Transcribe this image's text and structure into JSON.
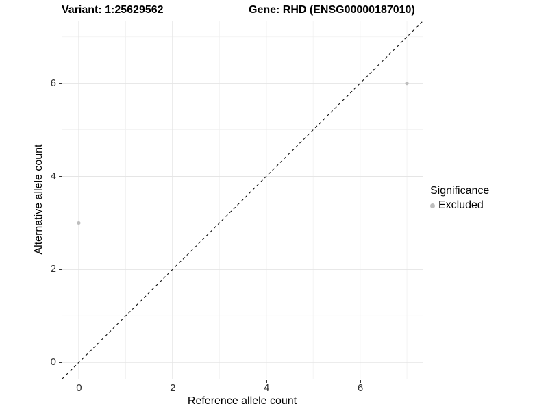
{
  "header": {
    "variant_title": "Variant: 1:25629562",
    "gene_title": "Gene: RHD (ENSG00000187010)"
  },
  "chart_data": {
    "type": "scatter",
    "title": "Variant: 1:25629562    Gene: RHD (ENSG00000187010)",
    "xlabel": "Reference allele count",
    "ylabel": "Alternative allele count",
    "xlim": [
      -0.35,
      7.35
    ],
    "ylim": [
      -0.35,
      7.35
    ],
    "x_ticks": [
      0,
      2,
      4,
      6
    ],
    "y_ticks": [
      0,
      2,
      4,
      6
    ],
    "x_minor_ticks": [
      1,
      3,
      5,
      7
    ],
    "y_minor_ticks": [
      1,
      3,
      5,
      7
    ],
    "grid": "major+minor, light gray on white",
    "identity_line": {
      "slope": 1,
      "intercept": 0,
      "style": "dashed",
      "color": "#111111"
    },
    "series": [
      {
        "name": "Excluded",
        "color": "#bebebe",
        "points": [
          {
            "x": 0,
            "y": 3
          },
          {
            "x": 7,
            "y": 6
          }
        ]
      }
    ],
    "legend": {
      "title": "Significance",
      "position": "right",
      "entries": [
        {
          "label": "Excluded",
          "color": "#bebebe"
        }
      ]
    }
  },
  "colors": {
    "major_grid": "#e5e5e5",
    "minor_grid": "#f0f0f0",
    "axis_line": "#4d4d4d",
    "tick_mark": "#333333",
    "point": "#bebebe"
  }
}
